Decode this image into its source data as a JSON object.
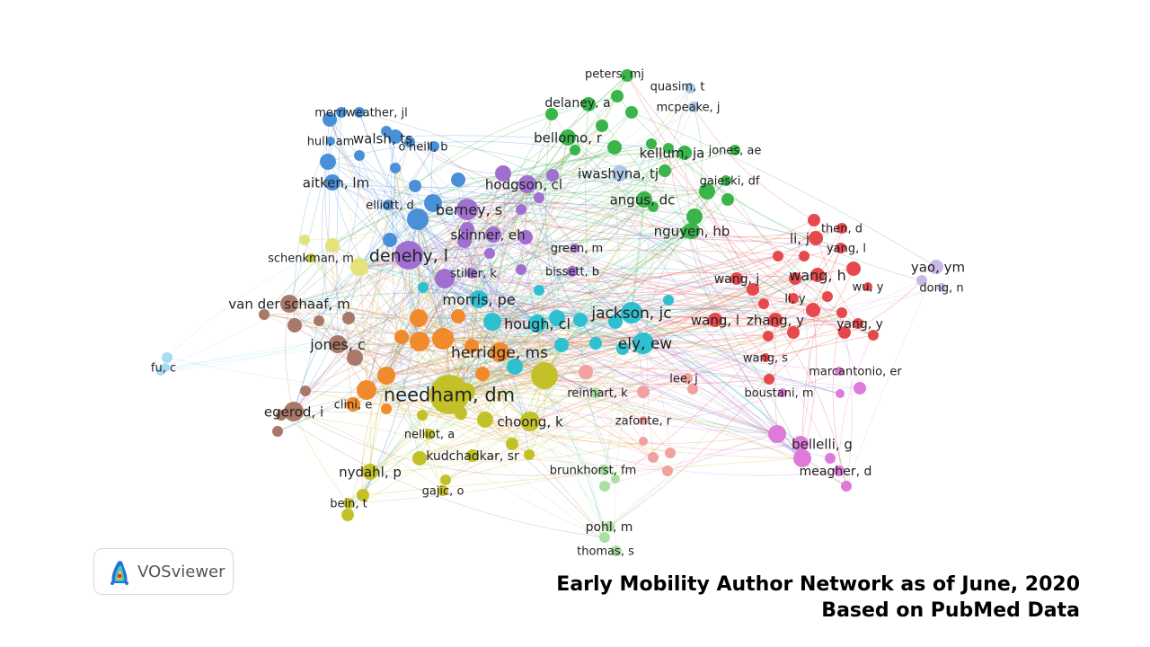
{
  "network": {
    "labels": [
      {
        "text": "peters, mj",
        "cluster": "green",
        "size": "s"
      },
      {
        "text": "quasim, t",
        "cluster": "lightblue",
        "size": "s"
      },
      {
        "text": "delaney, a",
        "cluster": "green",
        "size": "m"
      },
      {
        "text": "mcpeake, j",
        "cluster": "lightblue",
        "size": "s"
      },
      {
        "text": "merriweather, jl",
        "cluster": "blue",
        "size": "s"
      },
      {
        "text": "walsh, ts",
        "cluster": "blue",
        "size": "m"
      },
      {
        "text": "hull, am",
        "cluster": "blue",
        "size": "s"
      },
      {
        "text": "o'neill, b",
        "cluster": "blue",
        "size": "s"
      },
      {
        "text": "bellomo, r",
        "cluster": "green",
        "size": "m"
      },
      {
        "text": "kellum, ja",
        "cluster": "green",
        "size": "m"
      },
      {
        "text": "jones, ae",
        "cluster": "green",
        "size": "s"
      },
      {
        "text": "iwashyna, tj",
        "cluster": "lightblue",
        "size": "m"
      },
      {
        "text": "aitken, lm",
        "cluster": "blue",
        "size": "m"
      },
      {
        "text": "hodgson, cl",
        "cluster": "purple",
        "size": "m"
      },
      {
        "text": "gaieski, df",
        "cluster": "green",
        "size": "s"
      },
      {
        "text": "elliott, d",
        "cluster": "blue",
        "size": "s"
      },
      {
        "text": "angus, dc",
        "cluster": "green",
        "size": "m"
      },
      {
        "text": "berney, s",
        "cluster": "purple",
        "size": "m"
      },
      {
        "text": "then, d",
        "cluster": "red",
        "size": "s"
      },
      {
        "text": "li, j",
        "cluster": "red",
        "size": "m"
      },
      {
        "text": "skinner, eh",
        "cluster": "purple",
        "size": "m"
      },
      {
        "text": "nguyen, hb",
        "cluster": "green",
        "size": "m"
      },
      {
        "text": "yang, l",
        "cluster": "red",
        "size": "s"
      },
      {
        "text": "green, m",
        "cluster": "purple",
        "size": "s"
      },
      {
        "text": "schenkman, m",
        "cluster": "yellow",
        "size": "s"
      },
      {
        "text": "denehy, l",
        "cluster": "purple",
        "size": "l"
      },
      {
        "text": "yao, ym",
        "cluster": "lavender",
        "size": "m"
      },
      {
        "text": "stiller, k",
        "cluster": "purple",
        "size": "s"
      },
      {
        "text": "bissett, b",
        "cluster": "purple",
        "size": "s"
      },
      {
        "text": "wang, h",
        "cluster": "red",
        "size": "m"
      },
      {
        "text": "wang, j",
        "cluster": "red",
        "size": "s"
      },
      {
        "text": "wu, y",
        "cluster": "red",
        "size": "s"
      },
      {
        "text": "dong, n",
        "cluster": "lavender",
        "size": "s"
      },
      {
        "text": "morris, pe",
        "cluster": "cyan",
        "size": "m"
      },
      {
        "text": "li, y",
        "cluster": "red",
        "size": "s"
      },
      {
        "text": "van der schaaf, m",
        "cluster": "brown",
        "size": "m"
      },
      {
        "text": "jackson, jc",
        "cluster": "cyan",
        "size": "m"
      },
      {
        "text": "hough, cl",
        "cluster": "cyan",
        "size": "m"
      },
      {
        "text": "wang, l",
        "cluster": "red",
        "size": "m"
      },
      {
        "text": "zhang, y",
        "cluster": "red",
        "size": "m"
      },
      {
        "text": "yang, y",
        "cluster": "red",
        "size": "s"
      },
      {
        "text": "jones, c",
        "cluster": "brown",
        "size": "m"
      },
      {
        "text": "ely, ew",
        "cluster": "cyan",
        "size": "m"
      },
      {
        "text": "herridge, ms",
        "cluster": "orange",
        "size": "m"
      },
      {
        "text": "wang, s",
        "cluster": "red",
        "size": "s"
      },
      {
        "text": "fu, c",
        "cluster": "skyblue",
        "size": "s"
      },
      {
        "text": "marcantonio, er",
        "cluster": "pink",
        "size": "s"
      },
      {
        "text": "lee, j",
        "cluster": "salmon",
        "size": "s"
      },
      {
        "text": "needham, dm",
        "cluster": "yellow",
        "size": "xl"
      },
      {
        "text": "reinhart, k",
        "cluster": "lightgreen",
        "size": "s"
      },
      {
        "text": "boustani, m",
        "cluster": "pink",
        "size": "s"
      },
      {
        "text": "clini, e",
        "cluster": "orange",
        "size": "s"
      },
      {
        "text": "egerod, i",
        "cluster": "brown",
        "size": "m"
      },
      {
        "text": "choong, k",
        "cluster": "yellow",
        "size": "m"
      },
      {
        "text": "zafonte, r",
        "cluster": "salmon",
        "size": "s"
      },
      {
        "text": "nelliot, a",
        "cluster": "yellow",
        "size": "s"
      },
      {
        "text": "bellelli, g",
        "cluster": "pink",
        "size": "m"
      },
      {
        "text": "kudchadkar, sr",
        "cluster": "yellow",
        "size": "s"
      },
      {
        "text": "nydahl, p",
        "cluster": "yellow",
        "size": "m"
      },
      {
        "text": "brunkhorst, fm",
        "cluster": "lightgreen",
        "size": "s"
      },
      {
        "text": "meagher, d",
        "cluster": "pink",
        "size": "s"
      },
      {
        "text": "gajic, o",
        "cluster": "yellow",
        "size": "s"
      },
      {
        "text": "bein, t",
        "cluster": "yellow",
        "size": "s"
      },
      {
        "text": "pohl, m",
        "cluster": "lightgreen",
        "size": "s"
      },
      {
        "text": "thomas, s",
        "cluster": "lightgreen",
        "size": "s"
      }
    ]
  },
  "colors": {
    "blue": "#4a90d9",
    "purple": "#a070d0",
    "green": "#3ab54a",
    "lightblue": "#aec8e8",
    "red": "#e5484d",
    "lavender": "#c9b8e8",
    "cyan": "#2ec0d0",
    "brown": "#a87868",
    "orange": "#f08a2c",
    "yellow": "#c2c228",
    "paleyellow": "#e6e27a",
    "pink": "#e07ad8",
    "salmon": "#f2a0a0",
    "lightgreen": "#a8e0a0",
    "skyblue": "#a8dcf0"
  },
  "badge": {
    "icon": "vosviewer-logo-icon",
    "text": "VOSviewer"
  },
  "caption": {
    "line1": "Early Mobility Author Network as of June, 2020",
    "line2": "Based on PubMed Data"
  }
}
